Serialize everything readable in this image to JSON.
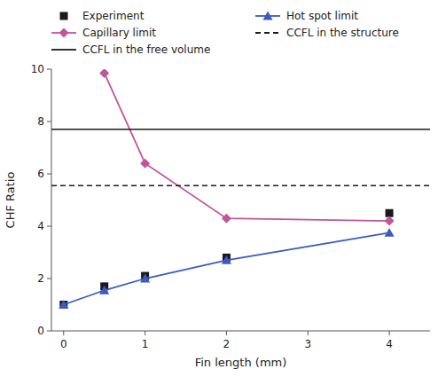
{
  "chart_data": {
    "type": "line",
    "xlabel": "Fin length (mm)",
    "ylabel": "CHF Ratio",
    "xlim": [
      -0.15,
      4.5
    ],
    "ylim": [
      0,
      10
    ],
    "xticks": [
      0,
      1,
      2,
      3,
      4
    ],
    "yticks": [
      0,
      2,
      4,
      6,
      8,
      10
    ],
    "grid": false,
    "legend": "top",
    "series": [
      {
        "name": "Experiment",
        "type": "scatter",
        "color": "#1a1a1a",
        "marker": "square",
        "x": [
          0,
          0.5,
          1,
          2,
          4
        ],
        "values": [
          1.0,
          1.7,
          2.1,
          2.8,
          4.5
        ]
      },
      {
        "name": "Hot spot limit",
        "type": "line",
        "color": "#3a5bbf",
        "marker": "triangle",
        "line_style": "solid",
        "x": [
          0,
          0.5,
          1,
          2,
          4
        ],
        "values": [
          1.0,
          1.55,
          2.0,
          2.7,
          3.75
        ]
      },
      {
        "name": "Capillary limit",
        "type": "line",
        "color": "#c0569a",
        "marker": "diamond",
        "line_style": "solid",
        "x": [
          0.5,
          1,
          2,
          4
        ],
        "values": [
          9.85,
          6.4,
          4.3,
          4.2
        ]
      },
      {
        "name": "CCFL in the structure",
        "type": "hline",
        "color": "#1a1a1a",
        "line_style": "dashed",
        "values": [
          5.55
        ]
      },
      {
        "name": "CCFL in the free volume",
        "type": "hline",
        "color": "#1a1a1a",
        "line_style": "solid",
        "values": [
          7.7
        ]
      }
    ]
  }
}
